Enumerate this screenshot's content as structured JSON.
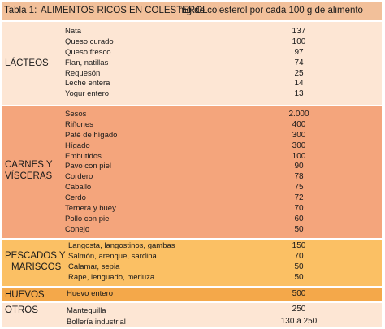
{
  "header": {
    "table_label": "Tabla 1:",
    "title": "ALIMENTOS RICOS EN COLESTEROL",
    "value_header": "mg de colesterol por cada 100  g de alimento"
  },
  "groups": [
    {
      "category": "LÁCTEOS",
      "items": [
        "Nata",
        "Queso curado",
        "Queso fresco",
        "Flan, natillas",
        "Requesón",
        "Leche entera",
        "Yogur entero"
      ],
      "values": [
        "137",
        "100",
        "97",
        "74",
        "25",
        "14",
        "13"
      ]
    },
    {
      "category": "CARNES Y VÍSCERAS",
      "category_lines": [
        "CARNES Y",
        "VÍSCERAS"
      ],
      "items": [
        "Sesos",
        "Riñones",
        "Paté de hígado",
        "Hígado",
        "Embutidos",
        "Pavo con piel",
        "Cordero",
        "Caballo",
        "Cerdo",
        "Ternera y buey",
        "Pollo con piel",
        "Conejo"
      ],
      "values": [
        "2.000",
        "400",
        "300",
        "300",
        "100",
        "90",
        "78",
        "75",
        "72",
        "70",
        "60",
        "50"
      ]
    },
    {
      "category": "PESCADOS Y MARISCOS",
      "category_lines": [
        "PESCADOS Y",
        "MARISCOS"
      ],
      "items": [
        "Langosta, langostinos,  gambas",
        "Salmón, arenque, sardina",
        "Calamar, sepia",
        "Rape, lenguado, merluza"
      ],
      "values": [
        "150",
        "70",
        "50",
        "50"
      ]
    },
    {
      "category": "HUEVOS",
      "items": [
        "Huevo entero"
      ],
      "values": [
        "500"
      ]
    },
    {
      "category": "OTROS",
      "items": [
        "Mantequilla",
        "Bollería industrial"
      ],
      "values": [
        "250",
        "130 a 250"
      ]
    }
  ],
  "colors": {
    "header_bg": "#f2c09a",
    "lacteos_bg": "#fde6d4",
    "carnes_bg": "#f4a57c",
    "pescados_bg": "#fbc064",
    "huevos_bg": "#f4a84a",
    "otros_bg": "#fde6d4"
  }
}
